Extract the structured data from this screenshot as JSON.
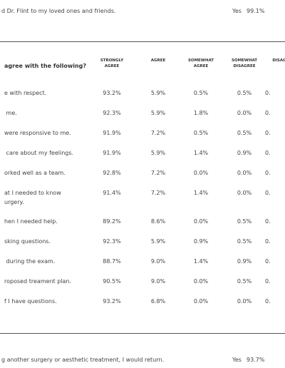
{
  "top": {
    "text": "d Dr. Flint to my loved ones and friends.",
    "answer": "Yes",
    "value": "99.1%"
  },
  "table": {
    "question": "agree with the following?",
    "columns": [
      [
        "STRONGLY",
        "AGREE"
      ],
      [
        "AGREE"
      ],
      [
        "SOMEWHAT",
        "AGREE"
      ],
      [
        "SOMEWHAT",
        "DISAGREE"
      ],
      [
        "DISAG"
      ]
    ],
    "rows": [
      {
        "label": [
          "e with respect."
        ],
        "cells": [
          "93.2%",
          "5.9%",
          "0.5%",
          "0.5%",
          "0."
        ]
      },
      {
        "label": [
          " me."
        ],
        "cells": [
          "92.3%",
          "5.9%",
          "1.8%",
          "0.0%",
          "0."
        ]
      },
      {
        "label": [
          "were responsive to me."
        ],
        "cells": [
          "91.9%",
          "7.2%",
          "0.5%",
          "0.5%",
          "0."
        ]
      },
      {
        "label": [
          " care about my feelings."
        ],
        "cells": [
          "91.9%",
          "5.9%",
          "1.4%",
          "0.9%",
          "0."
        ]
      },
      {
        "label": [
          "orked well as a team."
        ],
        "cells": [
          "92.8%",
          "7.2%",
          "0.0%",
          "0.0%",
          "0."
        ]
      },
      {
        "label": [
          "at I needed to know",
          "urgery."
        ],
        "cells": [
          "91.4%",
          "7.2%",
          "1.4%",
          "0.0%",
          "0."
        ]
      },
      {
        "label": [
          "hen I needed help."
        ],
        "cells": [
          "89.2%",
          "8.6%",
          "0.0%",
          "0.5%",
          "0."
        ]
      },
      {
        "label": [
          "sking questions."
        ],
        "cells": [
          "92.3%",
          "5.9%",
          "0.9%",
          "0.5%",
          "0."
        ]
      },
      {
        "label": [
          " during the exam."
        ],
        "cells": [
          "88.7%",
          "9.0%",
          "1.4%",
          "0.9%",
          "0."
        ]
      },
      {
        "label": [
          "roposed treament plan."
        ],
        "cells": [
          "90.5%",
          "9.0%",
          "0.0%",
          "0.5%",
          "0."
        ]
      },
      {
        "label": [
          "f I have questions."
        ],
        "cells": [
          "93.2%",
          "6.8%",
          "0.0%",
          "0.0%",
          "0."
        ]
      }
    ]
  },
  "bottom": {
    "text": "g another surgery or aesthetic treatment, I would return.",
    "answer": "Yes",
    "value": "93.7%"
  }
}
